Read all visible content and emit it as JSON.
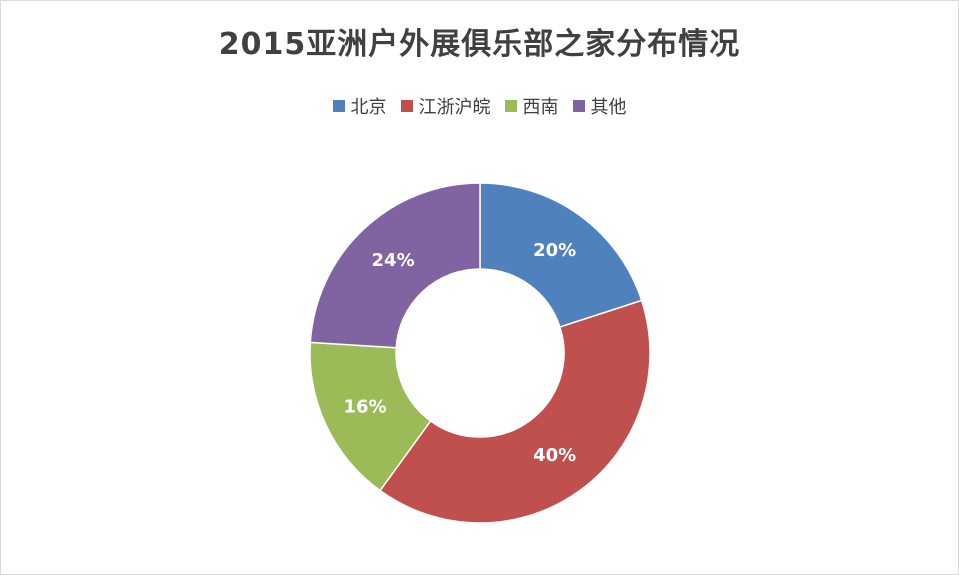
{
  "chart_data": {
    "type": "pie",
    "title": "2015亚洲户外展俱乐部之家分布情况",
    "categories": [
      "北京",
      "江浙沪皖",
      "西南",
      "其他"
    ],
    "values": [
      20,
      40,
      16,
      24
    ],
    "labels": [
      "20%",
      "40%",
      "16%",
      "24%"
    ],
    "colors": [
      "#4f81bd",
      "#c0504d",
      "#9bbb59",
      "#8064a2"
    ],
    "donut": true,
    "legend_position": "top",
    "grid": false
  }
}
